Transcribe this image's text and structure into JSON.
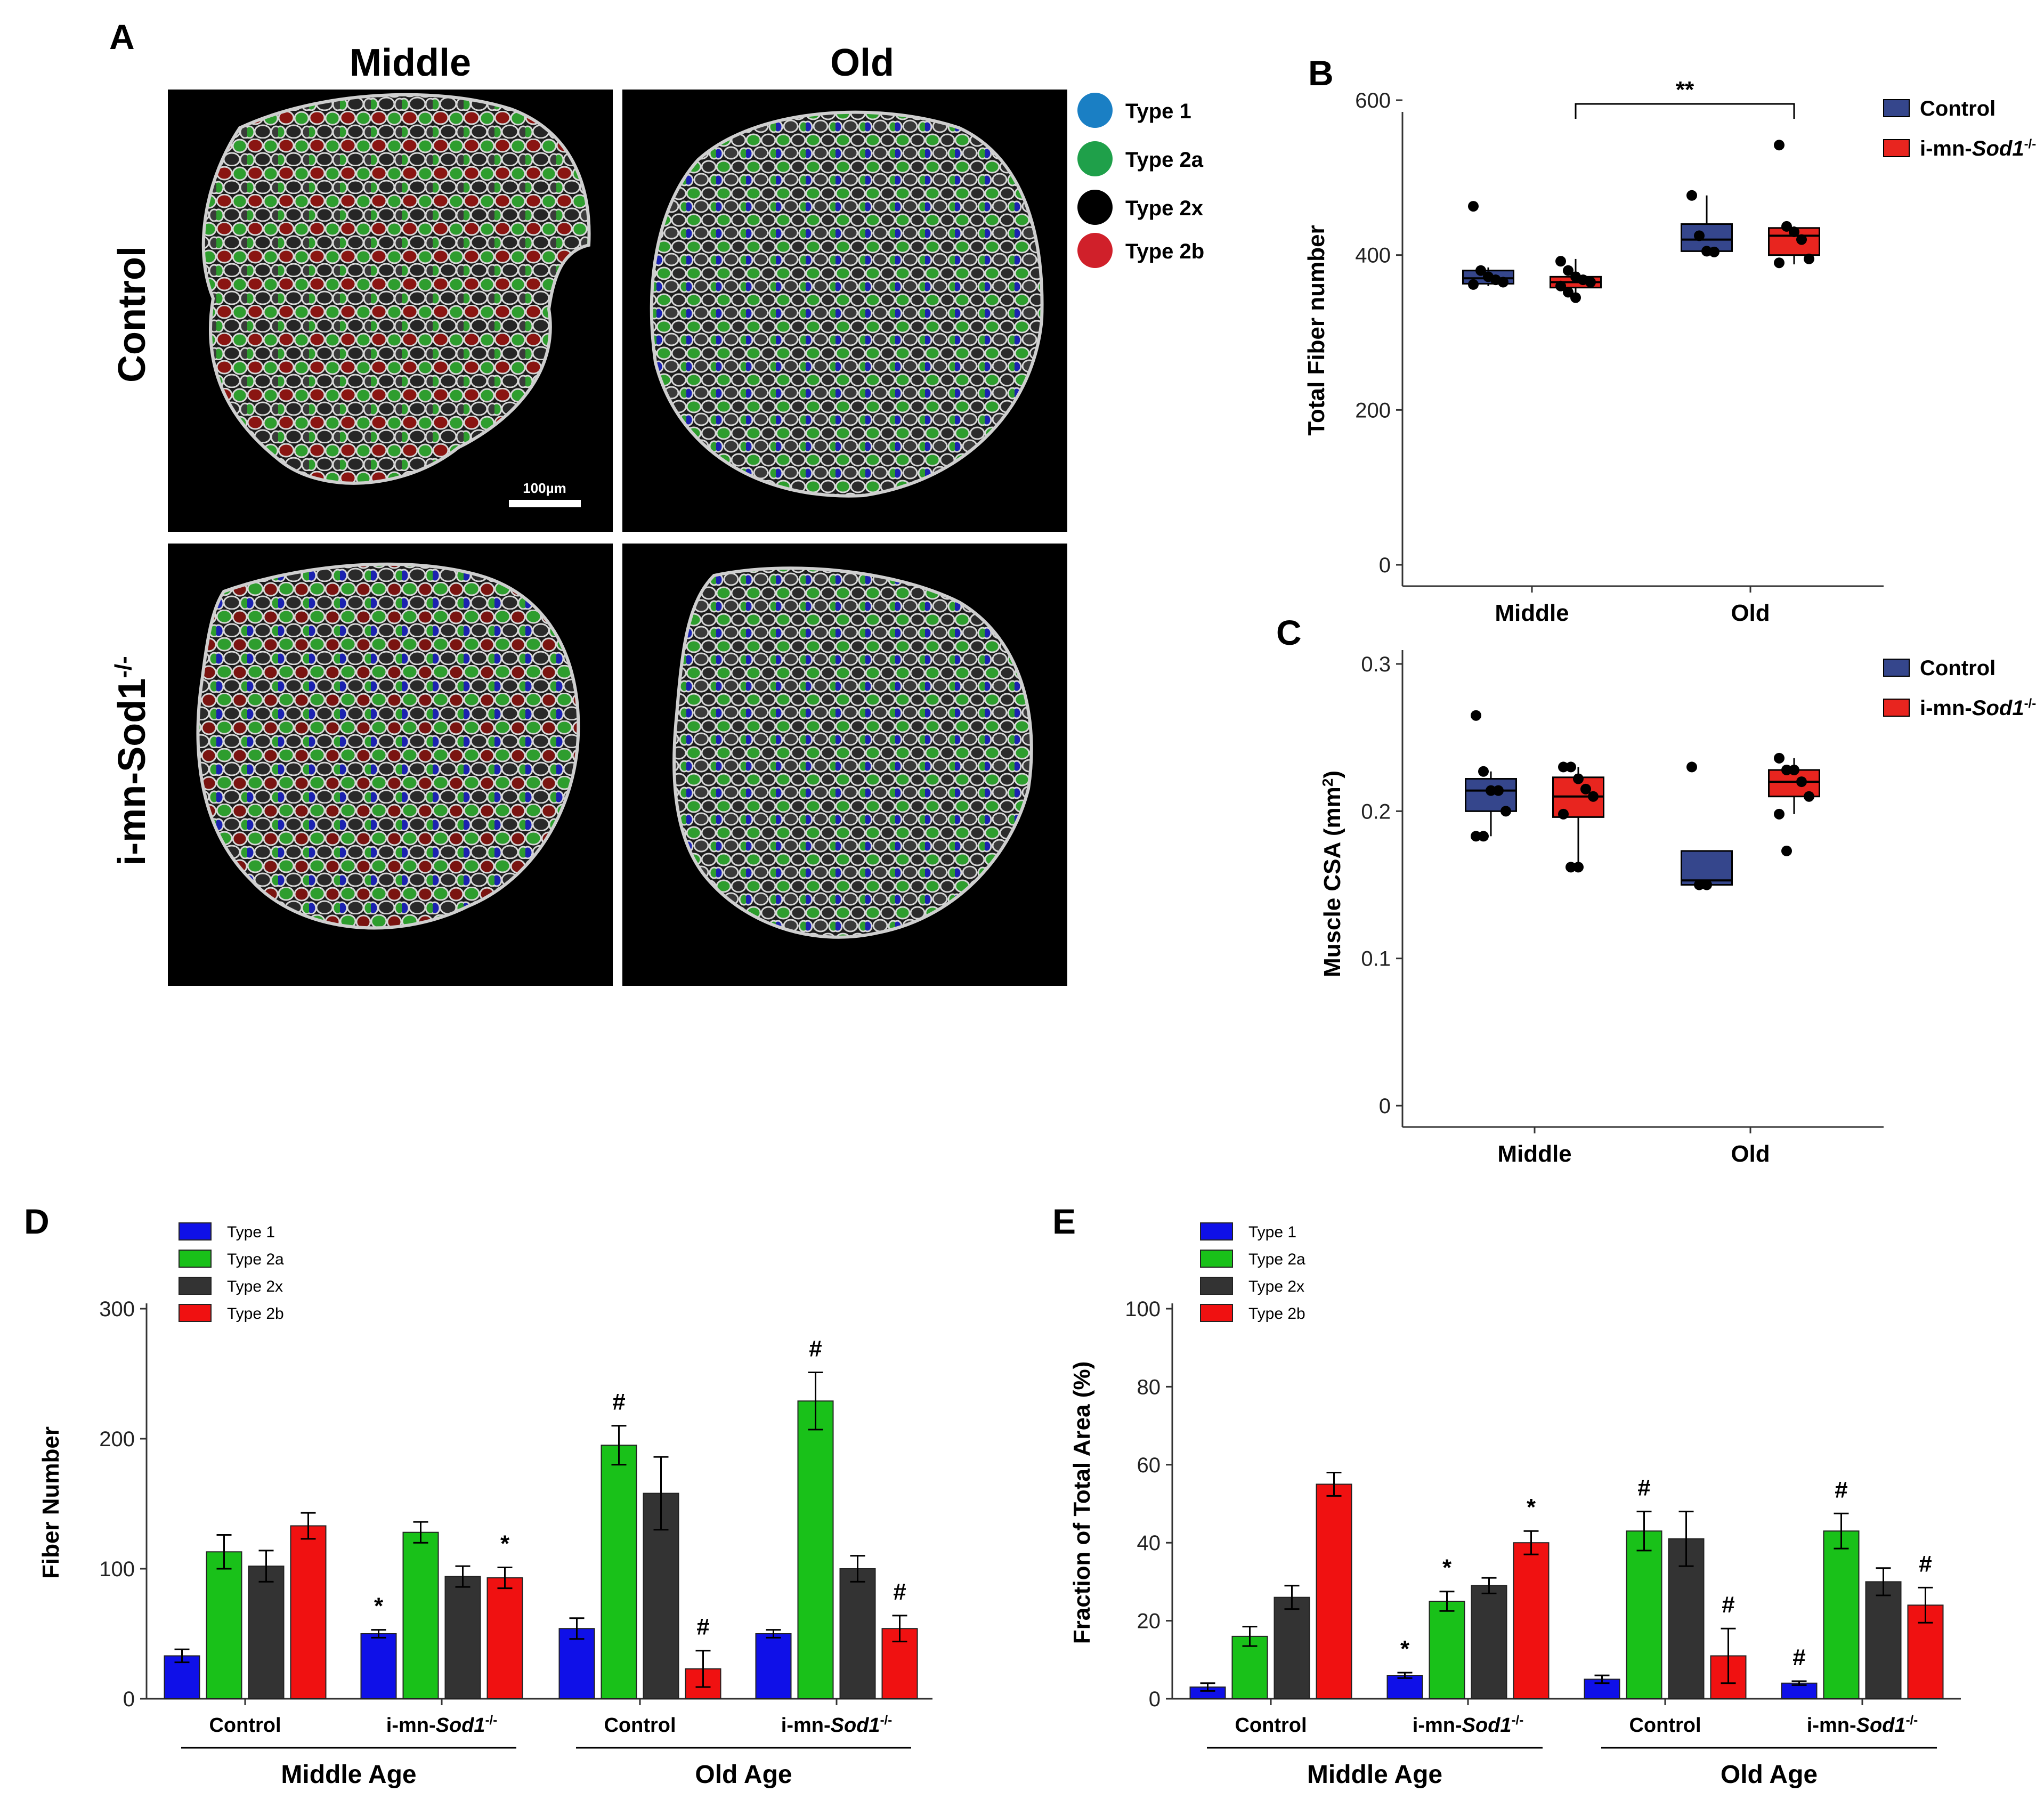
{
  "panel_a": {
    "letter": "A",
    "columns": [
      "Middle",
      "Old"
    ],
    "rows": [
      "Control",
      "i-mn-Sod1"
    ],
    "row_superscript": "-/-",
    "scale_bar_label": "100µm",
    "legend": [
      {
        "label": "Type 1",
        "color": "#1a7fc4"
      },
      {
        "label": "Type 2a",
        "color": "#1fa04a"
      },
      {
        "label": "Type 2x",
        "color": "#000000"
      },
      {
        "label": "Type 2b",
        "color": "#d0202a"
      }
    ]
  },
  "chart_data": [
    {
      "id": "B",
      "letter": "B",
      "type": "box",
      "ylabel": "Total Fiber number",
      "categories": [
        "Middle",
        "Old"
      ],
      "yticks": [
        "0",
        "200",
        "400",
        "600"
      ],
      "ylim": [
        0,
        620
      ],
      "legend": [
        {
          "label": "Control",
          "color": "#35468c"
        },
        {
          "label": "i-mn-",
          "label_italic": "Sod1",
          "sup": "-/-",
          "color": "#e8251f"
        }
      ],
      "significance": {
        "label": "**",
        "from": "Middle i-mn-Sod1",
        "to": "Old i-mn-Sod1"
      },
      "boxes": [
        {
          "category": "Middle",
          "group": "Control",
          "q1": 363,
          "median": 370,
          "q3": 380,
          "whisker_low": 360,
          "whisker_high": 384,
          "points": [
            463,
            380,
            372,
            368,
            365,
            362
          ]
        },
        {
          "category": "Middle",
          "group": "i-mn-Sod1",
          "q1": 358,
          "median": 365,
          "q3": 372,
          "whisker_low": 342,
          "whisker_high": 395,
          "points": [
            392,
            380,
            372,
            368,
            365,
            360,
            352,
            345
          ]
        },
        {
          "category": "Old",
          "group": "Control",
          "q1": 405,
          "median": 420,
          "q3": 440,
          "whisker_low": 403,
          "whisker_high": 477,
          "points": [
            477,
            425,
            405,
            404
          ]
        },
        {
          "category": "Old",
          "group": "i-mn-Sod1",
          "q1": 400,
          "median": 425,
          "q3": 435,
          "whisker_low": 388,
          "whisker_high": 437,
          "points": [
            542,
            437,
            430,
            420,
            395,
            390
          ]
        }
      ]
    },
    {
      "id": "C",
      "letter": "C",
      "type": "box",
      "ylabel": "Muscle CSA (mm",
      "ylabel_sup": "2",
      "ylabel_end": ")",
      "categories": [
        "Middle",
        "Old"
      ],
      "yticks": [
        "0",
        "0.1",
        "0.2",
        "0.3"
      ],
      "ylim": [
        0,
        0.315
      ],
      "legend": [
        {
          "label": "Control",
          "color": "#35468c"
        },
        {
          "label": "i-mn-",
          "label_italic": "Sod1",
          "sup": "-/-",
          "color": "#e8251f"
        }
      ],
      "boxes": [
        {
          "category": "Middle",
          "group": "Control",
          "q1": 0.2,
          "median": 0.214,
          "q3": 0.222,
          "whisker_low": 0.183,
          "whisker_high": 0.227,
          "points": [
            0.265,
            0.227,
            0.214,
            0.214,
            0.2,
            0.183,
            0.183
          ]
        },
        {
          "category": "Middle",
          "group": "i-mn-Sod1",
          "q1": 0.196,
          "median": 0.21,
          "q3": 0.223,
          "whisker_low": 0.162,
          "whisker_high": 0.23,
          "points": [
            0.23,
            0.23,
            0.222,
            0.215,
            0.21,
            0.198,
            0.162,
            0.162
          ]
        },
        {
          "category": "Old",
          "group": "Control",
          "q1": 0.15,
          "median": 0.153,
          "q3": 0.173,
          "whisker_low": 0.148,
          "whisker_high": 0.173,
          "points": [
            0.23,
            0.15,
            0.15
          ]
        },
        {
          "category": "Old",
          "group": "i-mn-Sod1",
          "q1": 0.21,
          "median": 0.22,
          "q3": 0.228,
          "whisker_low": 0.198,
          "whisker_high": 0.236,
          "points": [
            0.236,
            0.228,
            0.228,
            0.22,
            0.21,
            0.198,
            0.173
          ]
        }
      ]
    },
    {
      "id": "D",
      "letter": "D",
      "type": "bar",
      "ylabel": "Fiber Number",
      "yticks": [
        "0",
        "100",
        "200",
        "300"
      ],
      "ylim": [
        0,
        300
      ],
      "legend": [
        "Type 1",
        "Type 2a",
        "Type 2x",
        "Type 2b"
      ],
      "colors": [
        "#0f10e8",
        "#19c119",
        "#333333",
        "#f01111"
      ],
      "groups": [
        {
          "label": "Control",
          "label_italic": "",
          "sup": "",
          "super_group": "Middle Age",
          "values": [
            33,
            113,
            102,
            133
          ],
          "errors": [
            5,
            13,
            12,
            10
          ],
          "marks": [
            "",
            "",
            "",
            ""
          ]
        },
        {
          "label": "i-mn-",
          "label_italic": "Sod1",
          "sup": "-/-",
          "super_group": "Middle Age",
          "values": [
            50,
            128,
            94,
            93
          ],
          "errors": [
            3,
            8,
            8,
            8
          ],
          "marks": [
            "*",
            "",
            "",
            "*"
          ]
        },
        {
          "label": "Control",
          "label_italic": "",
          "sup": "",
          "super_group": "Old Age",
          "values": [
            54,
            195,
            158,
            23
          ],
          "errors": [
            8,
            15,
            28,
            14
          ],
          "marks": [
            "",
            "#",
            "",
            "#"
          ]
        },
        {
          "label": "i-mn-",
          "label_italic": "Sod1",
          "sup": "-/-",
          "super_group": "Old Age",
          "values": [
            50,
            229,
            100,
            54
          ],
          "errors": [
            3,
            22,
            10,
            10
          ],
          "marks": [
            "",
            "#",
            "",
            "#"
          ]
        }
      ],
      "super_groups": [
        "Middle Age",
        "Old Age"
      ]
    },
    {
      "id": "E",
      "letter": "E",
      "type": "bar",
      "ylabel": "Fraction of Total Area (%)",
      "yticks": [
        "0",
        "20",
        "40",
        "60",
        "80",
        "100"
      ],
      "ylim": [
        0,
        100
      ],
      "legend": [
        "Type 1",
        "Type 2a",
        "Type 2x",
        "Type 2b"
      ],
      "colors": [
        "#0f10e8",
        "#19c119",
        "#333333",
        "#f01111"
      ],
      "groups": [
        {
          "label": "Control",
          "label_italic": "",
          "sup": "",
          "super_group": "Middle Age",
          "values": [
            3,
            16,
            26,
            55
          ],
          "errors": [
            1,
            2.5,
            3,
            3
          ],
          "marks": [
            "",
            "",
            "",
            ""
          ]
        },
        {
          "label": "i-mn-",
          "label_italic": "Sod1",
          "sup": "-/-",
          "super_group": "Middle Age",
          "values": [
            6,
            25,
            29,
            40
          ],
          "errors": [
            0.7,
            2.5,
            2,
            3
          ],
          "marks": [
            "*",
            "*",
            "",
            "*"
          ]
        },
        {
          "label": "Control",
          "label_italic": "",
          "sup": "",
          "super_group": "Old Age",
          "values": [
            5,
            43,
            41,
            11
          ],
          "errors": [
            1,
            5,
            7,
            7
          ],
          "marks": [
            "",
            "#",
            "",
            "#"
          ]
        },
        {
          "label": "i-mn-",
          "label_italic": "Sod1",
          "sup": "-/-",
          "super_group": "Old Age",
          "values": [
            4,
            43,
            30,
            24
          ],
          "errors": [
            0.5,
            4.5,
            3.5,
            4.5
          ],
          "marks": [
            "#",
            "#",
            "",
            "#"
          ]
        }
      ],
      "super_groups": [
        "Middle Age",
        "Old Age"
      ]
    }
  ]
}
